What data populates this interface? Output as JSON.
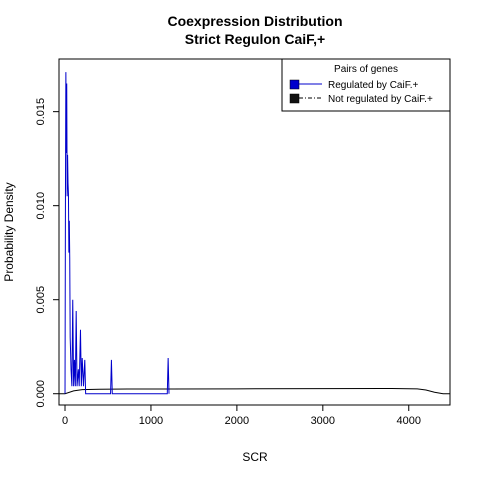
{
  "chart_data": {
    "type": "line",
    "title": "Coexpression Distribution",
    "subtitle": "Strict Regulon CaiF,+",
    "xlabel": "SCR",
    "ylabel": "Probability Density",
    "xlim": [
      -70,
      4480
    ],
    "ylim": [
      -0.0006,
      0.0178
    ],
    "x_ticks": [
      0,
      1000,
      2000,
      3000,
      4000
    ],
    "y_ticks": [
      0.0,
      0.005,
      0.01,
      0.015
    ],
    "x_tick_labels": [
      "0",
      "1000",
      "2000",
      "3000",
      "4000"
    ],
    "y_tick_labels": [
      "0.000",
      "0.005",
      "0.010",
      "0.015"
    ],
    "grid": false,
    "legend": {
      "title": "Pairs of genes",
      "placement": "top-right",
      "entries": [
        "Regulated by  CaiF.+",
        "Not regulated by  CaiF.+"
      ]
    },
    "series": [
      {
        "name": "Regulated by  CaiF.+",
        "color": "#0000cc",
        "points": [
          [
            0,
            0.0
          ],
          [
            5,
            0.0105
          ],
          [
            10,
            0.0171
          ],
          [
            15,
            0.0128
          ],
          [
            20,
            0.0165
          ],
          [
            25,
            0.0105
          ],
          [
            30,
            0.0127
          ],
          [
            35,
            0.0112
          ],
          [
            40,
            0.0106
          ],
          [
            45,
            0.0075
          ],
          [
            50,
            0.0092
          ],
          [
            55,
            0.0072
          ],
          [
            60,
            0.003
          ],
          [
            65,
            0.0022
          ],
          [
            70,
            0.0013
          ],
          [
            80,
            0.0004
          ],
          [
            90,
            0.005
          ],
          [
            100,
            0.0004
          ],
          [
            110,
            0.0018
          ],
          [
            120,
            0.0004
          ],
          [
            130,
            0.0044
          ],
          [
            140,
            0.0004
          ],
          [
            155,
            0.0013
          ],
          [
            165,
            0.0004
          ],
          [
            180,
            0.0034
          ],
          [
            190,
            0.0004
          ],
          [
            200,
            0.0019
          ],
          [
            215,
            0.0004
          ],
          [
            230,
            0.0018
          ],
          [
            240,
            0.0
          ],
          [
            530,
            0.0
          ],
          [
            540,
            0.0018
          ],
          [
            550,
            0.0
          ],
          [
            1190,
            0.0
          ],
          [
            1200,
            0.0019
          ],
          [
            1210,
            0.0
          ]
        ]
      },
      {
        "name": "Not regulated by  CaiF.+",
        "color": "#000000",
        "points": [
          [
            -70,
            0.0
          ],
          [
            0,
            0.0
          ],
          [
            100,
            0.00015
          ],
          [
            200,
            0.00022
          ],
          [
            400,
            0.00024
          ],
          [
            800,
            0.00025
          ],
          [
            1200,
            0.00025
          ],
          [
            2000,
            0.00026
          ],
          [
            3000,
            0.00027
          ],
          [
            3800,
            0.00028
          ],
          [
            4100,
            0.00026
          ],
          [
            4200,
            0.0002
          ],
          [
            4300,
            8e-05
          ],
          [
            4400,
            0.0
          ],
          [
            4480,
            0.0
          ]
        ]
      }
    ]
  }
}
